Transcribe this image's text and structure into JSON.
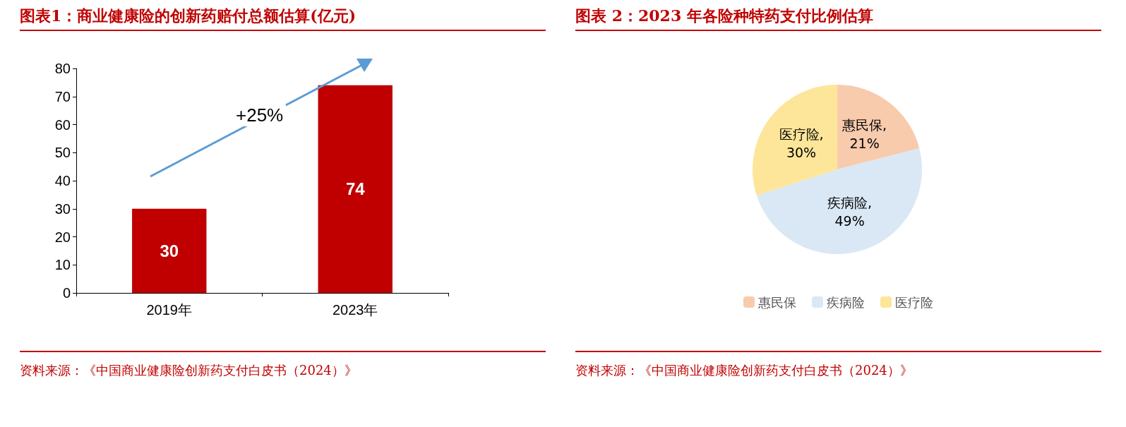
{
  "chart_data": [
    {
      "type": "bar",
      "title": "图表1：商业健康险的创新药赔付总额估算(亿元)",
      "categories": [
        "2019年",
        "2023年"
      ],
      "values": [
        30,
        74
      ],
      "color": "#c00000",
      "data_labels": true,
      "ylim": [
        0,
        80
      ],
      "yticks": [
        0,
        10,
        20,
        30,
        40,
        50,
        60,
        70,
        80
      ],
      "grid": false,
      "legend": false,
      "annotations": [
        "+25%",
        "资料来源：《中国商业健康险创新药支付白皮书（2024）》"
      ]
    },
    {
      "type": "pie",
      "title": "图表 2：2023 年各险种特药支付比例估算",
      "categories": [
        "惠民保",
        "疾病险",
        "医疗险"
      ],
      "values": [
        21,
        49,
        30
      ],
      "value_labels": [
        "惠民保,\n21%",
        "疾病险,\n49%",
        "医疗险,\n30%"
      ],
      "colors": [
        "#f8cbad",
        "#dae8f5",
        "#fde699"
      ],
      "legend": "bottom",
      "annotations": [
        "资料来源：《中国商业健康险创新药支付白皮书（2024）》"
      ]
    }
  ]
}
